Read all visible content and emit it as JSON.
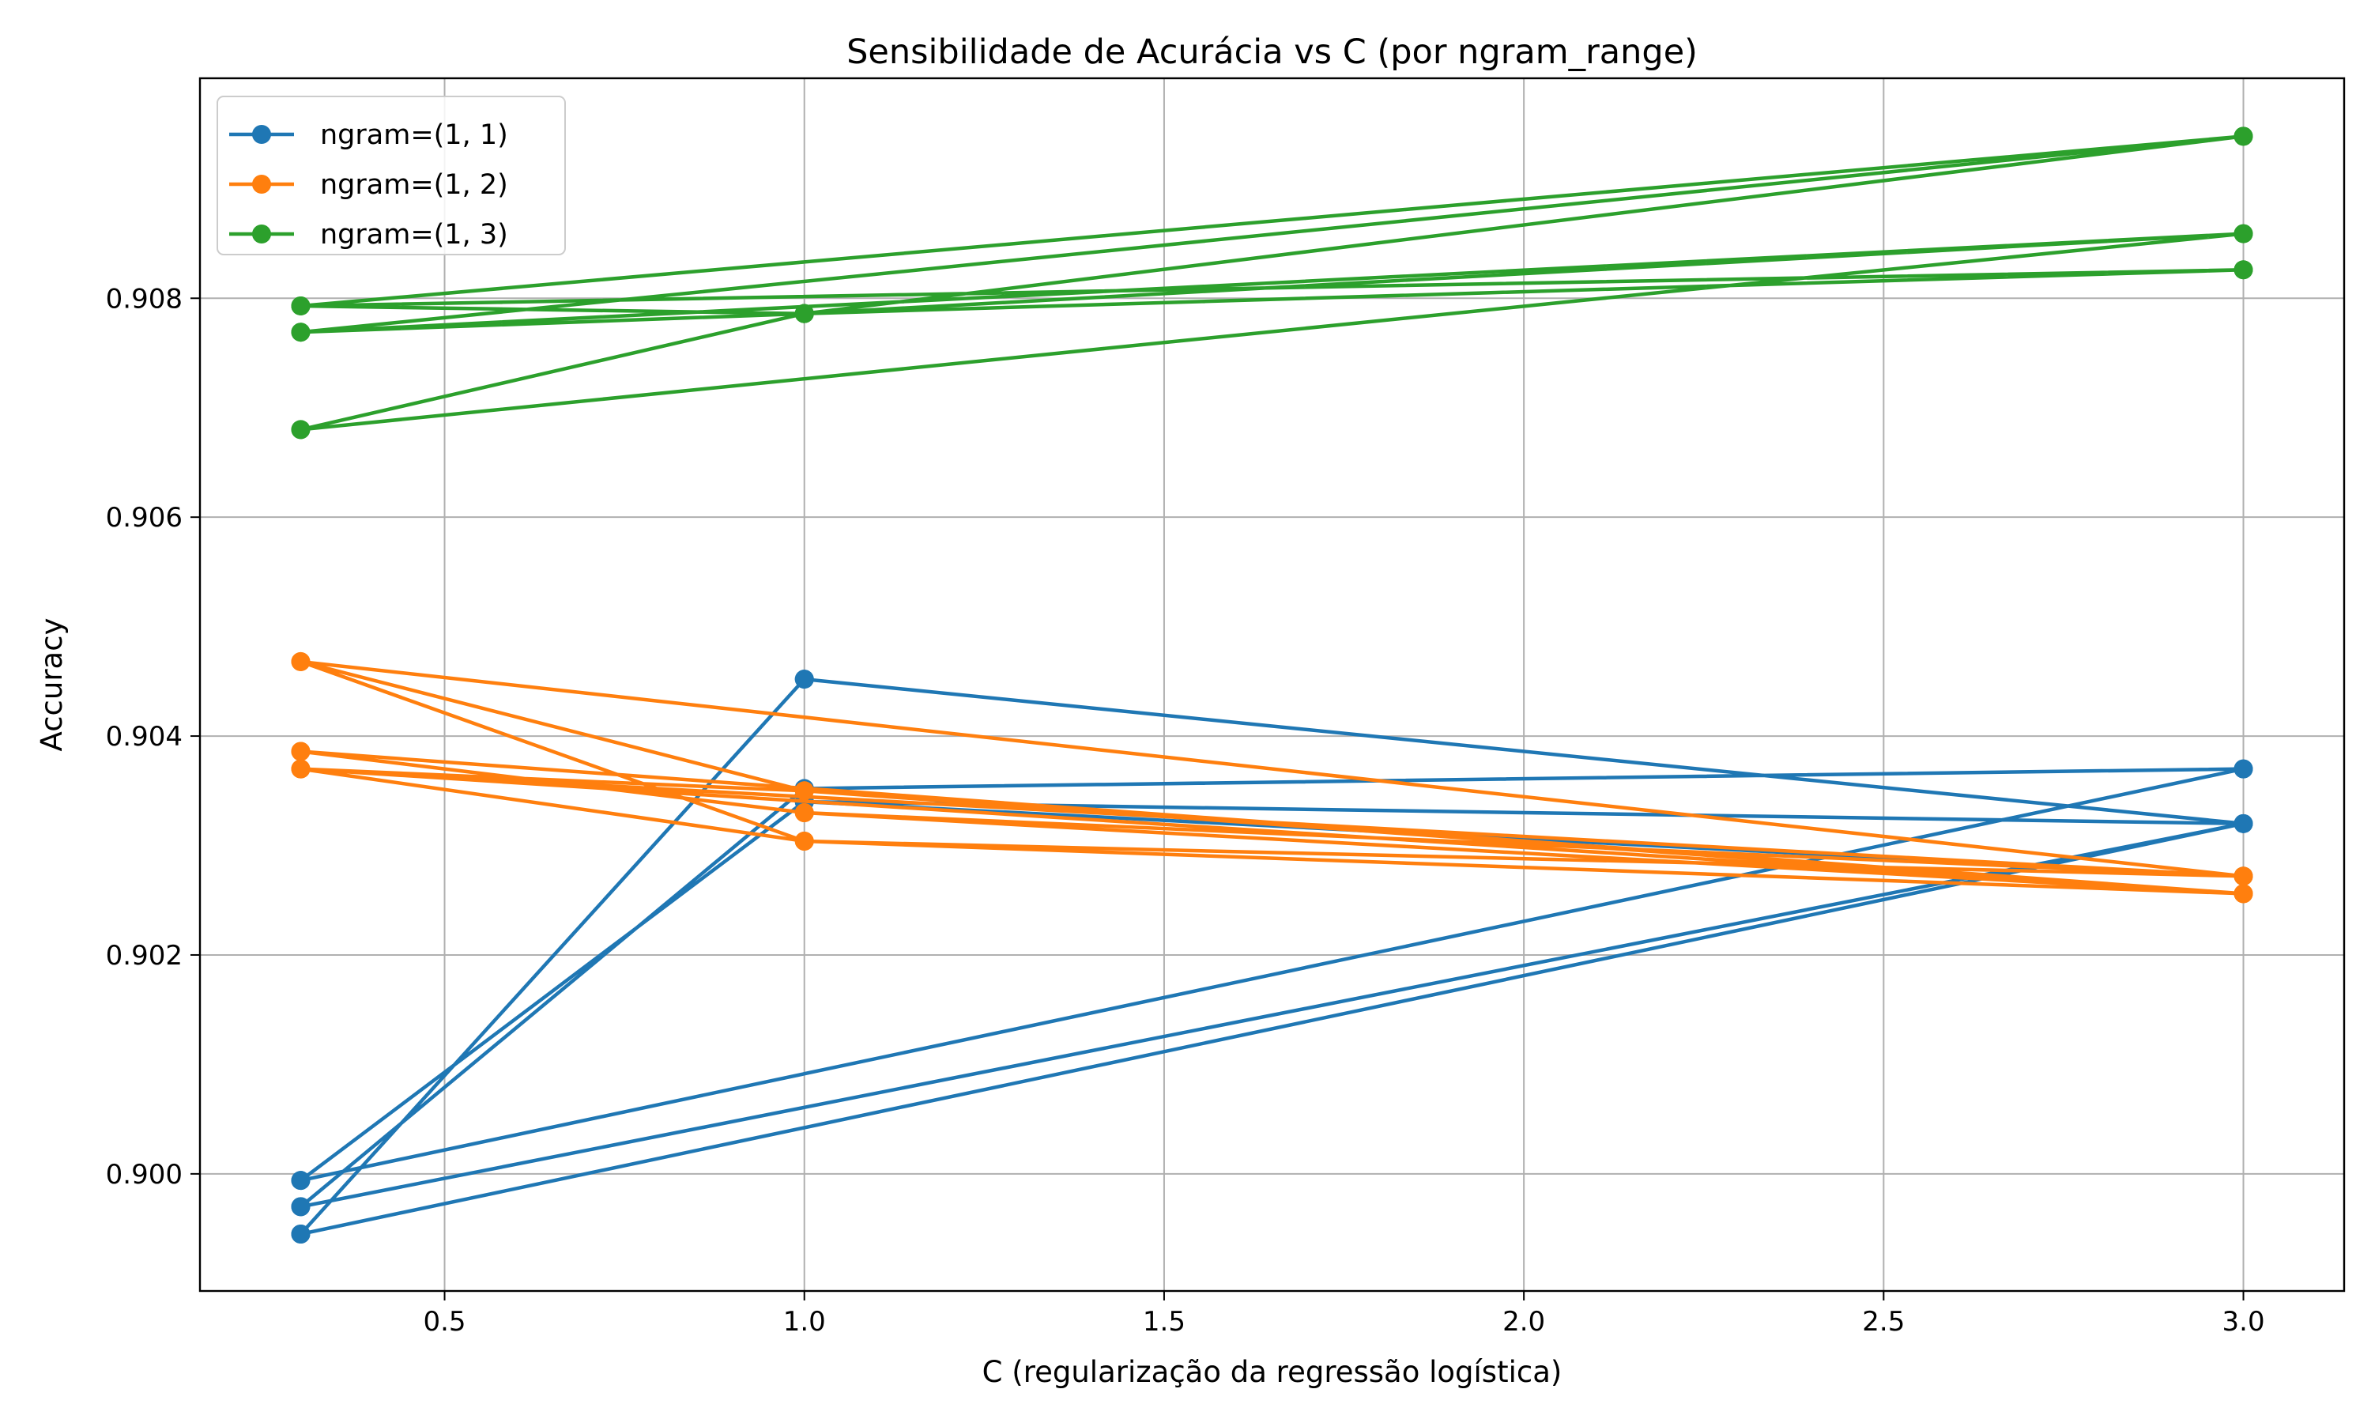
{
  "chart_data": {
    "type": "line",
    "title": "Sensibilidade de Acurácia vs C (por ngram_range)",
    "xlabel": "C (regularização da regressão logística)",
    "ylabel": "Accuracy",
    "xlim": [
      0.16,
      3.14
    ],
    "ylim": [
      0.89893,
      0.91001
    ],
    "xticks": [
      0.5,
      1.0,
      1.5,
      2.0,
      2.5,
      3.0
    ],
    "xtick_labels": [
      "0.5",
      "1.0",
      "1.5",
      "2.0",
      "2.5",
      "3.0"
    ],
    "yticks": [
      0.9,
      0.902,
      0.904,
      0.906,
      0.908
    ],
    "ytick_labels": [
      "0.900",
      "0.902",
      "0.904",
      "0.906",
      "0.908"
    ],
    "grid": true,
    "legend_position": "top-left",
    "series": [
      {
        "name": "ngram=(1, 1)",
        "color": "#1f77b4",
        "x": [
          0.3,
          1.0,
          3.0,
          0.3,
          1.0,
          3.0,
          0.3,
          1.0,
          3.0,
          0.3,
          1.0,
          3.0,
          0.3,
          1.0,
          3.0,
          0.3,
          1.0,
          3.0
        ],
        "y": [
          0.89945,
          0.90452,
          0.9032,
          0.8997,
          0.90352,
          0.9037,
          0.89994,
          0.9034,
          0.9032,
          0.89945,
          0.90452,
          0.9032,
          0.8997,
          0.90352,
          0.9037,
          0.89994,
          0.9034,
          0.90272
        ]
      },
      {
        "name": "ngram=(1, 2)",
        "color": "#ff7f0e",
        "x": [
          0.3,
          1.0,
          3.0,
          0.3,
          1.0,
          3.0,
          0.3,
          1.0,
          3.0,
          0.3,
          1.0,
          3.0,
          0.3,
          1.0,
          3.0,
          0.3,
          1.0,
          3.0
        ],
        "y": [
          0.90468,
          0.90304,
          0.90256,
          0.90386,
          0.9033,
          0.90272,
          0.9037,
          0.9035,
          0.90256,
          0.90386,
          0.9033,
          0.90256,
          0.9037,
          0.90304,
          0.90272,
          0.90468,
          0.9035,
          0.90256
        ]
      },
      {
        "name": "ngram=(1, 3)",
        "color": "#2ca02c",
        "x": [
          0.3,
          1.0,
          3.0,
          0.3,
          1.0,
          3.0,
          0.3,
          1.0,
          3.0,
          0.3,
          1.0,
          3.0,
          0.3,
          1.0,
          3.0,
          0.3,
          1.0,
          3.0
        ],
        "y": [
          0.9068,
          0.90786,
          0.90948,
          0.90793,
          0.90786,
          0.90859,
          0.90769,
          0.90786,
          0.90826,
          0.90793,
          0.90786,
          0.90948,
          0.90769,
          0.90786,
          0.90859,
          0.9068,
          0.90786,
          0.90826
        ]
      }
    ]
  }
}
